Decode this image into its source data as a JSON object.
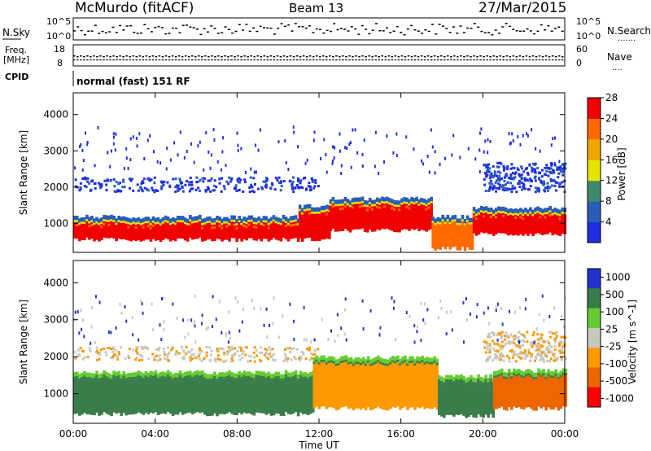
{
  "header": {
    "station": "McMurdo (fitACF)",
    "beam": "Beam 13",
    "date": "27/Mar/2015"
  },
  "side_labels": {
    "nsky": "N.Sky",
    "freq_line1": "Freq.",
    "freq_line2": "[MHz]",
    "cpid": "CPID",
    "nsearch": "N.Search",
    "nave": "Nave"
  },
  "cpid_text": "normal (fast) 151 RF",
  "top_panel": {
    "nsky_ticks": [
      "10^5",
      "10^0"
    ],
    "nsearch_ticks": [
      "10^5",
      "10^0"
    ],
    "freq_ticks": [
      "18",
      "8"
    ],
    "nave_ticks": [
      "60",
      "0"
    ]
  },
  "colors": {
    "power": [
      "#1e2de0",
      "#2a5db8",
      "#3f8a6a",
      "#e4e400",
      "#f0a800",
      "#ff6a00",
      "#f00000"
    ],
    "velocity": [
      "#2233cc",
      "#3a7d4a",
      "#66cc33",
      "#c8c8c0",
      "#ff9900",
      "#ee6600",
      "#ff0000"
    ]
  },
  "chart_data": [
    {
      "type": "heatmap",
      "name": "power",
      "ylabel": "Slant Range [km]",
      "ylim": [
        200,
        4600
      ],
      "yticks": [
        "1000",
        "2000",
        "3000",
        "4000"
      ],
      "colorbar_label": "Power [dB]",
      "colorbar_ticks": [
        "4",
        "8",
        "12",
        "16",
        "20",
        "24",
        "28"
      ],
      "colorbar_range": [
        0,
        32
      ],
      "bands": [
        {
          "from": 0,
          "to": 11,
          "lo": 550,
          "hi": 1000,
          "c": 6
        },
        {
          "from": 11,
          "to": 12.5,
          "lo": 550,
          "hi": 1300,
          "c": 6
        },
        {
          "from": 12.5,
          "to": 17.5,
          "lo": 800,
          "hi": 1500,
          "c": 6
        },
        {
          "from": 17.5,
          "to": 19.5,
          "lo": 300,
          "hi": 1000,
          "c": 5
        },
        {
          "from": 19.5,
          "to": 24,
          "lo": 700,
          "hi": 1250,
          "c": 6
        }
      ],
      "scatter_bands": [
        {
          "from": 0,
          "to": 12,
          "lo": 1900,
          "hi": 2300
        },
        {
          "from": 20,
          "to": 24,
          "lo": 1900,
          "hi": 2700
        }
      ]
    },
    {
      "type": "heatmap",
      "name": "velocity",
      "ylabel": "Slant Range [km]",
      "ylim": [
        200,
        4600
      ],
      "yticks": [
        "1000",
        "2000",
        "3000",
        "4000"
      ],
      "colorbar_label": "Velocity [m s^-1]",
      "colorbar_ticks": [
        "1000",
        "500",
        "100",
        "25",
        "-25",
        "-100",
        "-500",
        "-1000"
      ],
      "bands": [
        {
          "from": 0,
          "to": 11.7,
          "lo": 450,
          "hi": 1400,
          "c": 1
        },
        {
          "from": 11.7,
          "to": 17.8,
          "lo": 600,
          "hi": 1800,
          "c": 4
        },
        {
          "from": 17.8,
          "to": 20.5,
          "lo": 400,
          "hi": 1300,
          "c": 1
        },
        {
          "from": 20.5,
          "to": 24,
          "lo": 600,
          "hi": 1450,
          "c": 5
        }
      ],
      "scatter_bands": [
        {
          "from": 0,
          "to": 12,
          "lo": 1900,
          "hi": 2300
        },
        {
          "from": 20,
          "to": 24,
          "lo": 1900,
          "hi": 2700
        }
      ]
    }
  ],
  "x_axis": {
    "label": "Time UT",
    "ticks": [
      "00:00",
      "04:00",
      "08:00",
      "12:00",
      "16:00",
      "20:00",
      "00:00"
    ],
    "range_hours": [
      0,
      24
    ]
  }
}
